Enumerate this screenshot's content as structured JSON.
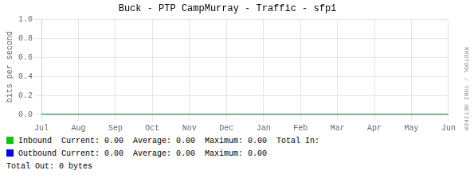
{
  "chart_data": {
    "type": "line",
    "title": "Buck - PTP CampMurray - Traffic - sfp1",
    "ylabel": "bits per second",
    "categories": [
      "Jul",
      "Aug",
      "Sep",
      "Oct",
      "Nov",
      "Dec",
      "Jan",
      "Feb",
      "Mar",
      "Apr",
      "May",
      "Jun"
    ],
    "series": [
      {
        "name": "Inbound",
        "color": "#00cc00",
        "values": [
          0,
          0,
          0,
          0,
          0,
          0,
          0,
          0,
          0,
          0,
          0,
          0
        ]
      },
      {
        "name": "Outbound",
        "color": "#0000ff",
        "values": [
          0,
          0,
          0,
          0,
          0,
          0,
          0,
          0,
          0,
          0,
          0,
          0
        ]
      }
    ],
    "ylim": [
      0.0,
      1.0
    ],
    "yticks": [
      {
        "value": 0,
        "label": "0.0"
      },
      {
        "value": 0.2,
        "label": "0.2"
      },
      {
        "value": 0.4,
        "label": "0.4"
      },
      {
        "value": 0.6,
        "label": "0.6"
      },
      {
        "value": 0.8,
        "label": "0.8"
      },
      {
        "value": 1,
        "label": "1.0"
      }
    ],
    "grid": true,
    "annotations": [
      "Current: 0.00  Average: 0.00  Maximum: 0.00  Total In:",
      "Current: 0.00  Average: 0.00  Maximum: 0.00",
      "Total Out: 0 bytes",
      "RRDTOOL / TOBI OETIKER"
    ]
  }
}
